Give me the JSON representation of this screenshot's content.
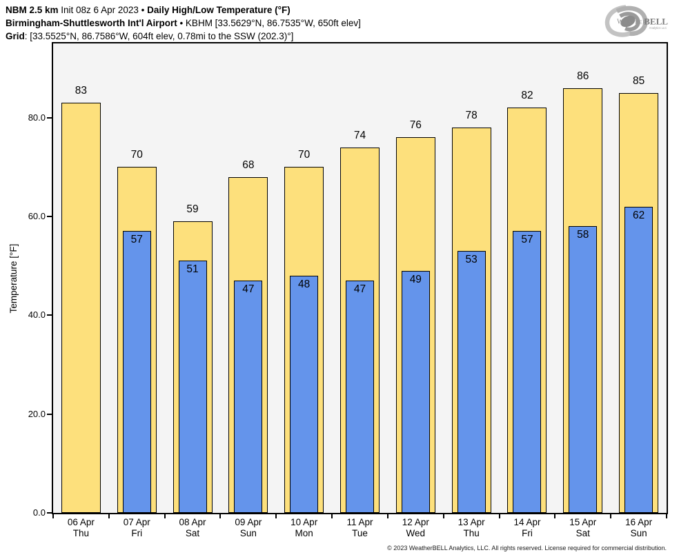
{
  "header": {
    "model": "NBM 2.5 km",
    "init_info": " Init 08z 6 Apr 2023 • ",
    "product": "Daily High/Low Temperature (°F)",
    "station_name": "Birmingham-Shuttlesworth Int'l Airport",
    "station_details": " • KBHM [33.5629°N, 86.7535°W, 650ft elev]",
    "grid_label": "Grid",
    "grid_details": ": [33.5525°N, 86.7586°W, 604ft elev, 0.78mi to the SSW (202.3)°]"
  },
  "logo": {
    "icon": "hurricane-swirl-icon",
    "text_weather": "Weather",
    "text_bell": "BELL",
    "text_sub": "Analytics LLC"
  },
  "footer": {
    "copyright": "© 2023 WeatherBELL Analytics, LLC. All rights reserved. License required for commercial distribution."
  },
  "colors": {
    "high_bar": "#FDE07C",
    "low_bar": "#6494EB",
    "bar_edge": "#000000",
    "plot_bg": "#F4F4F4"
  },
  "chart_data": {
    "type": "bar",
    "title": "NBM 2.5 km Daily High/Low Temperature (°F) — Birmingham-Shuttlesworth Int'l Airport (KBHM)",
    "ylabel": "Temperature [°F]",
    "ylim": [
      0,
      95
    ],
    "grid": false,
    "legend": "none",
    "yticks": [
      {
        "value": 0,
        "label": "0.0"
      },
      {
        "value": 20,
        "label": "20.0"
      },
      {
        "value": 40,
        "label": "40.0"
      },
      {
        "value": 60,
        "label": "60.0"
      },
      {
        "value": 80,
        "label": "80.0"
      }
    ],
    "categories": [
      {
        "date": "06 Apr",
        "day": "Thu"
      },
      {
        "date": "07 Apr",
        "day": "Fri"
      },
      {
        "date": "08 Apr",
        "day": "Sat"
      },
      {
        "date": "09 Apr",
        "day": "Sun"
      },
      {
        "date": "10 Apr",
        "day": "Mon"
      },
      {
        "date": "11 Apr",
        "day": "Tue"
      },
      {
        "date": "12 Apr",
        "day": "Wed"
      },
      {
        "date": "13 Apr",
        "day": "Thu"
      },
      {
        "date": "14 Apr",
        "day": "Fri"
      },
      {
        "date": "15 Apr",
        "day": "Sat"
      },
      {
        "date": "16 Apr",
        "day": "Sun"
      }
    ],
    "series": [
      {
        "name": "High",
        "color": "#FDE07C",
        "values": [
          83,
          70,
          59,
          68,
          70,
          74,
          76,
          78,
          82,
          86,
          85
        ]
      },
      {
        "name": "Low",
        "color": "#6494EB",
        "values": [
          null,
          57,
          51,
          47,
          48,
          47,
          49,
          53,
          57,
          58,
          62
        ]
      }
    ]
  }
}
